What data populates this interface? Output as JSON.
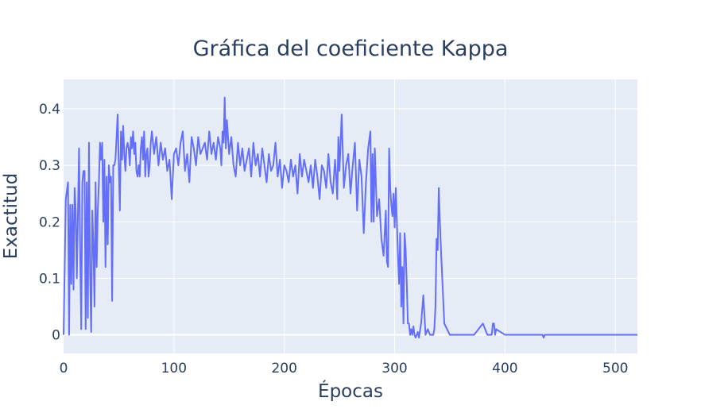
{
  "chart_data": {
    "type": "line",
    "title": "Gráfica del coeficiente Kappa",
    "xlabel": "Épocas",
    "ylabel": "Exactitud",
    "xlim": [
      0,
      520
    ],
    "ylim": [
      -0.033,
      0.452
    ],
    "xticks": [
      "0",
      "100",
      "200",
      "300",
      "400",
      "500"
    ],
    "yticks": [
      "0",
      "0.1",
      "0.2",
      "0.3",
      "0.4"
    ],
    "grid": true,
    "legend": "none",
    "colors": {
      "line": "#636efa",
      "plot_bg": "#e5ecf6",
      "grid": "#ffffff",
      "text": "#2a3f5f"
    },
    "series": [
      {
        "x": [
          0,
          2,
          4,
          5,
          6,
          7,
          8,
          9,
          10,
          11,
          12,
          14,
          15,
          16,
          17,
          18,
          19,
          20,
          21,
          22,
          23,
          24,
          25,
          26,
          27,
          28,
          29,
          30,
          31,
          32,
          33,
          34,
          35,
          36,
          37,
          38,
          39,
          40,
          41,
          42,
          43,
          44,
          45,
          46,
          47,
          48,
          49,
          50,
          51,
          52,
          53,
          54,
          55,
          56,
          57,
          58,
          59,
          60,
          61,
          62,
          63,
          64,
          65,
          66,
          67,
          68,
          69,
          70,
          71,
          72,
          73,
          74,
          75,
          76,
          77,
          78,
          79,
          80,
          82,
          84,
          86,
          88,
          90,
          92,
          94,
          96,
          98,
          100,
          102,
          104,
          106,
          108,
          110,
          112,
          114,
          116,
          118,
          120,
          122,
          124,
          126,
          128,
          130,
          132,
          134,
          136,
          138,
          140,
          142,
          143,
          144,
          145,
          146,
          147,
          148,
          150,
          152,
          154,
          156,
          158,
          160,
          162,
          164,
          166,
          168,
          170,
          172,
          174,
          176,
          178,
          180,
          182,
          184,
          186,
          188,
          190,
          192,
          194,
          196,
          198,
          200,
          202,
          204,
          206,
          208,
          210,
          212,
          214,
          216,
          218,
          220,
          222,
          224,
          226,
          228,
          230,
          232,
          234,
          236,
          238,
          240,
          242,
          244,
          246,
          247,
          248,
          249,
          250,
          252,
          254,
          256,
          258,
          260,
          262,
          264,
          266,
          268,
          270,
          272,
          274,
          276,
          278,
          279,
          280,
          281,
          282,
          284,
          286,
          288,
          290,
          292,
          293,
          294,
          295,
          296,
          297,
          298,
          299,
          300,
          301,
          302,
          303,
          304,
          305,
          306,
          307,
          308,
          309,
          310,
          311,
          312,
          313,
          314,
          315,
          316,
          317,
          318,
          319,
          320,
          321,
          322,
          324,
          326,
          328,
          330,
          332,
          333,
          334,
          335,
          336,
          337,
          338,
          339,
          340,
          341,
          342,
          345,
          350,
          360,
          368,
          369,
          370,
          371,
          372,
          380,
          384,
          385,
          386,
          387,
          388,
          389,
          390,
          391,
          392,
          400,
          420,
          432,
          433,
          434,
          435,
          436,
          440,
          460,
          480,
          500,
          520
        ],
        "values": [
          0,
          0.24,
          0.27,
          0,
          0.23,
          0.09,
          0.23,
          0.08,
          0.26,
          0.22,
          0.1,
          0.33,
          0.15,
          0.01,
          0.27,
          0.29,
          0.29,
          0.01,
          0.27,
          0.03,
          0.34,
          0.11,
          0.005,
          0.22,
          0.16,
          0.05,
          0.27,
          0.12,
          0.22,
          0.27,
          0.34,
          0.31,
          0.34,
          0.2,
          0.31,
          0.12,
          0.28,
          0.16,
          0.3,
          0.27,
          0.28,
          0.06,
          0.3,
          0.3,
          0.31,
          0.35,
          0.39,
          0.3,
          0.22,
          0.36,
          0.31,
          0.37,
          0.32,
          0.29,
          0.33,
          0.34,
          0.33,
          0.3,
          0.35,
          0.33,
          0.36,
          0.32,
          0.34,
          0.29,
          0.28,
          0.3,
          0.28,
          0.33,
          0.35,
          0.31,
          0.36,
          0.28,
          0.32,
          0.33,
          0.28,
          0.3,
          0.34,
          0.36,
          0.32,
          0.35,
          0.3,
          0.34,
          0.31,
          0.33,
          0.29,
          0.31,
          0.24,
          0.32,
          0.33,
          0.3,
          0.34,
          0.36,
          0.29,
          0.32,
          0.27,
          0.35,
          0.33,
          0.3,
          0.35,
          0.32,
          0.33,
          0.34,
          0.31,
          0.36,
          0.32,
          0.34,
          0.31,
          0.35,
          0.33,
          0.3,
          0.36,
          0.34,
          0.42,
          0.33,
          0.38,
          0.32,
          0.35,
          0.3,
          0.28,
          0.34,
          0.3,
          0.33,
          0.29,
          0.31,
          0.33,
          0.28,
          0.34,
          0.3,
          0.32,
          0.28,
          0.33,
          0.3,
          0.27,
          0.32,
          0.29,
          0.3,
          0.34,
          0.28,
          0.31,
          0.26,
          0.3,
          0.29,
          0.27,
          0.31,
          0.28,
          0.3,
          0.25,
          0.32,
          0.28,
          0.31,
          0.29,
          0.27,
          0.3,
          0.26,
          0.31,
          0.28,
          0.24,
          0.3,
          0.29,
          0.26,
          0.32,
          0.27,
          0.25,
          0.31,
          0.28,
          0.24,
          0.35,
          0.29,
          0.39,
          0.26,
          0.3,
          0.32,
          0.25,
          0.3,
          0.34,
          0.22,
          0.31,
          0.28,
          0.18,
          0.27,
          0.33,
          0.36,
          0.2,
          0.32,
          0.2,
          0.33,
          0.21,
          0.24,
          0.17,
          0.14,
          0.22,
          0.13,
          0.12,
          0.33,
          0.26,
          0.23,
          0.21,
          0.25,
          0.19,
          0.26,
          0.2,
          0.14,
          0.09,
          0.18,
          0.05,
          0.12,
          0.02,
          0.18,
          0.15,
          0.09,
          0.02,
          0.02,
          0.0,
          0.01,
          0.0,
          0.015,
          0.0,
          -0.005,
          0.0,
          0.005,
          -0.005,
          0.02,
          0.07,
          0.0,
          0.01,
          0.0,
          0.0,
          0.0,
          0.0,
          0.01,
          0.05,
          0.17,
          0.15,
          0.26,
          0.2,
          0.15,
          0.02,
          0.0,
          0.0,
          0.0,
          0.0,
          0.0,
          0.0,
          0.0,
          0.02,
          0.0,
          0.0,
          0.0,
          0.0,
          0.0,
          0.02,
          0.02,
          0.0,
          0.01,
          0.0,
          0.0,
          0.0,
          0.0,
          0.0,
          -0.005,
          0.0,
          0.0,
          0.0,
          0.0,
          0.0,
          0.0
        ]
      }
    ]
  }
}
